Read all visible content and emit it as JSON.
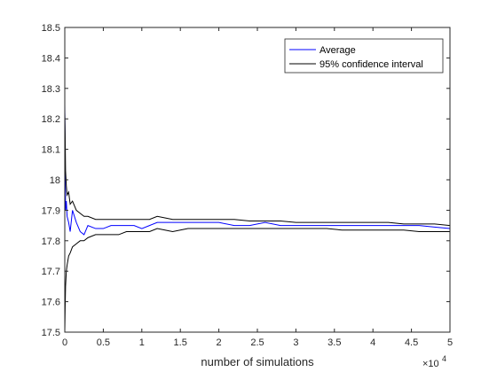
{
  "chart_data": {
    "type": "line",
    "title": "",
    "xlabel": "number of simulations",
    "ylabel": "",
    "xlim": [
      0,
      50000
    ],
    "ylim": [
      17.5,
      18.5
    ],
    "x_exponent_label": "×10",
    "x_exponent_power": "4",
    "x_ticks": [
      0,
      5000,
      10000,
      15000,
      20000,
      25000,
      30000,
      35000,
      40000,
      45000,
      50000
    ],
    "x_tick_labels": [
      "0",
      "0.5",
      "1",
      "1.5",
      "2",
      "2.5",
      "3",
      "3.5",
      "4",
      "4.5",
      "5"
    ],
    "y_ticks": [
      17.5,
      17.6,
      17.7,
      17.8,
      17.9,
      18.0,
      18.1,
      18.2,
      18.3,
      18.4,
      18.5
    ],
    "y_tick_labels": [
      "17.5",
      "17.6",
      "17.7",
      "17.8",
      "17.9",
      "18",
      "18.1",
      "18.2",
      "18.3",
      "18.4",
      "18.5"
    ],
    "grid": false,
    "legend_position": "top-right",
    "series": [
      {
        "name": "Average",
        "color": "#0000ff",
        "x": [
          0,
          50,
          100,
          200,
          300,
          500,
          700,
          1000,
          1500,
          2000,
          2500,
          3000,
          4000,
          5000,
          6000,
          7000,
          8000,
          9000,
          10000,
          11000,
          12000,
          13000,
          14000,
          15000,
          16000,
          17000,
          18000,
          19000,
          20000,
          22000,
          24000,
          26000,
          28000,
          30000,
          32000,
          34000,
          36000,
          38000,
          40000,
          42000,
          44000,
          46000,
          48000,
          50000
        ],
        "values": [
          18.25,
          18.08,
          17.9,
          17.93,
          17.88,
          17.86,
          17.83,
          17.9,
          17.86,
          17.83,
          17.82,
          17.85,
          17.84,
          17.84,
          17.85,
          17.85,
          17.85,
          17.85,
          17.84,
          17.85,
          17.86,
          17.86,
          17.86,
          17.86,
          17.86,
          17.86,
          17.86,
          17.86,
          17.86,
          17.85,
          17.85,
          17.86,
          17.85,
          17.85,
          17.85,
          17.85,
          17.85,
          17.85,
          17.85,
          17.85,
          17.85,
          17.85,
          17.845,
          17.84
        ]
      },
      {
        "name": "95% confidence interval",
        "color": "#000000",
        "x": [
          0,
          50,
          100,
          200,
          300,
          500,
          700,
          1000,
          1500,
          2000,
          2500,
          3000,
          4000,
          5000,
          6000,
          7000,
          8000,
          9000,
          10000,
          11000,
          12000,
          13000,
          14000,
          15000,
          16000,
          17000,
          18000,
          19000,
          20000,
          22000,
          24000,
          26000,
          28000,
          30000,
          32000,
          34000,
          36000,
          38000,
          40000,
          42000,
          44000,
          46000,
          48000,
          50000
        ],
        "values": [
          18.22,
          18.15,
          18.03,
          17.98,
          17.95,
          17.96,
          17.92,
          17.93,
          17.9,
          17.89,
          17.88,
          17.88,
          17.87,
          17.87,
          17.87,
          17.87,
          17.87,
          17.87,
          17.87,
          17.87,
          17.88,
          17.875,
          17.87,
          17.87,
          17.87,
          17.87,
          17.87,
          17.87,
          17.87,
          17.87,
          17.865,
          17.865,
          17.865,
          17.86,
          17.86,
          17.86,
          17.86,
          17.86,
          17.86,
          17.86,
          17.855,
          17.855,
          17.855,
          17.85
        ]
      },
      {
        "name": "",
        "color": "#000000",
        "x": [
          0,
          50,
          100,
          200,
          300,
          500,
          700,
          1000,
          1500,
          2000,
          2500,
          3000,
          4000,
          5000,
          6000,
          7000,
          8000,
          9000,
          10000,
          11000,
          12000,
          13000,
          14000,
          15000,
          16000,
          17000,
          18000,
          19000,
          20000,
          22000,
          24000,
          26000,
          28000,
          30000,
          32000,
          34000,
          36000,
          38000,
          40000,
          42000,
          44000,
          46000,
          48000,
          50000
        ],
        "values": [
          17.5,
          17.58,
          17.65,
          17.7,
          17.72,
          17.75,
          17.76,
          17.78,
          17.79,
          17.8,
          17.8,
          17.81,
          17.82,
          17.82,
          17.82,
          17.82,
          17.83,
          17.83,
          17.83,
          17.83,
          17.84,
          17.835,
          17.83,
          17.835,
          17.84,
          17.84,
          17.84,
          17.84,
          17.84,
          17.84,
          17.84,
          17.84,
          17.84,
          17.84,
          17.84,
          17.84,
          17.835,
          17.835,
          17.835,
          17.835,
          17.835,
          17.83,
          17.83,
          17.83
        ]
      }
    ]
  }
}
